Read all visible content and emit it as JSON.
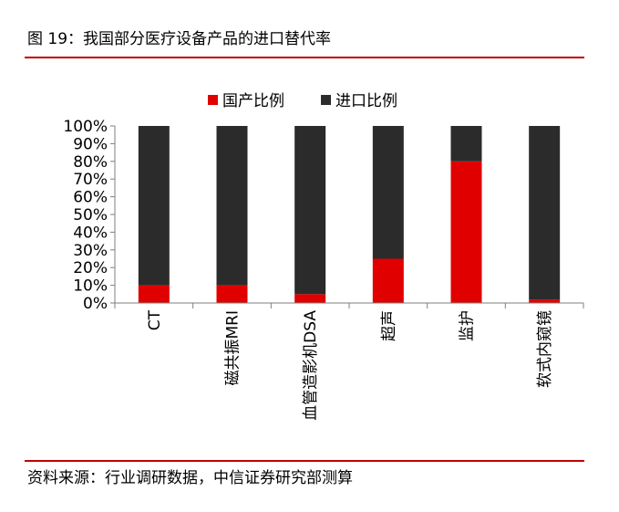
{
  "figure_title": "图 19：我国部分医疗设备产品的进口替代率",
  "source_note": "资料来源：行业调研数据，中信证券研究部测算",
  "colors": {
    "domestic": "#e00000",
    "import": "#2b2b2b",
    "rule": "#c00000",
    "axis": "#7f7f7f"
  },
  "chart_data": {
    "type": "bar",
    "stacked": true,
    "categories": [
      "CT",
      "磁共振MRI",
      "血管造影机DSA",
      "超声",
      "监护",
      "软式内窥镜"
    ],
    "series": [
      {
        "name": "国产比例",
        "values": [
          10,
          10,
          5,
          25,
          80,
          2
        ]
      },
      {
        "name": "进口比例",
        "values": [
          90,
          90,
          95,
          75,
          20,
          98
        ]
      }
    ],
    "ylim": [
      0,
      100
    ],
    "yticks": [
      "0%",
      "10%",
      "20%",
      "30%",
      "40%",
      "50%",
      "60%",
      "70%",
      "80%",
      "90%",
      "100%"
    ],
    "legend_position": "top",
    "grid": false,
    "title": "",
    "xlabel": "",
    "ylabel": ""
  }
}
